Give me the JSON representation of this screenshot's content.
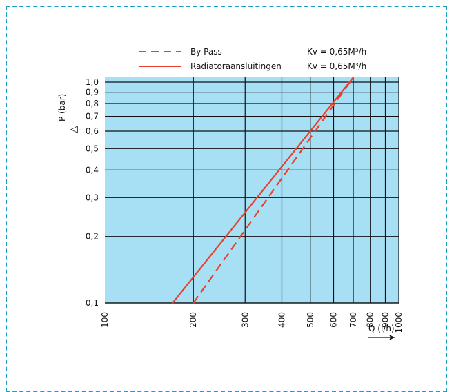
{
  "chart_data": {
    "type": "line",
    "x_scale": "log",
    "y_scale": "log",
    "xlim": [
      100,
      1000
    ],
    "ylim": [
      0.1,
      1.0
    ],
    "xlabel": "Q (l/h)",
    "ylabel": "P (bar)",
    "ylabel_symbol": "△",
    "x_ticks": [
      "100",
      "200",
      "300",
      "400",
      "500",
      "600",
      "700",
      "800",
      "900",
      "1000"
    ],
    "x_tick_values": [
      100,
      200,
      300,
      400,
      500,
      600,
      700,
      800,
      900,
      1000
    ],
    "y_ticks": [
      "0,1",
      "0,2",
      "0,3",
      "0,4",
      "0,5",
      "0,6",
      "0,7",
      "0,8",
      "0,9",
      "1,0"
    ],
    "y_tick_values": [
      0.1,
      0.2,
      0.3,
      0.4,
      0.5,
      0.6,
      0.7,
      0.8,
      0.9,
      1.0
    ],
    "grid": true,
    "legend_position": "top",
    "series": [
      {
        "name": "By Pass",
        "kv": "Kv = 0,65M³/h",
        "style": "dashed",
        "color": "#e8402a",
        "points": [
          [
            200,
            0.1
          ],
          [
            700,
            1.05
          ]
        ]
      },
      {
        "name": "Radiatoraansluitingen",
        "kv": "Kv = 0,65M³/h",
        "style": "solid",
        "color": "#e8402a",
        "points": [
          [
            170,
            0.1
          ],
          [
            700,
            1.05
          ]
        ]
      }
    ],
    "plot_background": "#a7dff5"
  }
}
